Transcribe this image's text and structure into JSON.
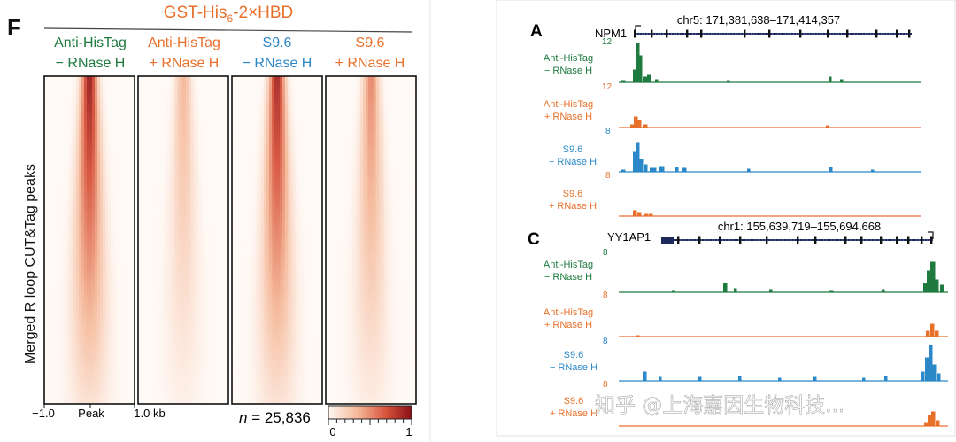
{
  "panel_f": {
    "letter": "F",
    "construct": {
      "prefix": "GST-His",
      "sub": "6",
      "suffix": "-2×HBD"
    },
    "columns": [
      {
        "line1": "Anti-HisTag",
        "line2": "− RNase H",
        "color": "#1e7a3e",
        "intensity": 1.0
      },
      {
        "line1": "Anti-HisTag",
        "line2": "+ RNase H",
        "color": "#e8702a",
        "intensity": 0.38
      },
      {
        "line1": "S9.6",
        "line2": "− RNase H",
        "color": "#2b88c8",
        "intensity": 0.95
      },
      {
        "line1": "S9.6",
        "line2": "+ RNase H",
        "color": "#e8702a",
        "intensity": 0.55
      }
    ],
    "ylabel": "Merged R loop CUT&Tag peaks",
    "xaxis": {
      "left": "−1.0",
      "center": "Peak",
      "right": "1.0 kb"
    },
    "n_label": "n",
    "n_value": "= 25,836",
    "colorbar": {
      "min": "0",
      "max": "1"
    }
  },
  "panel_a": {
    "letter": "A",
    "gene": "NPM1",
    "coords": "chr5: 171,381,638–171,414,357",
    "tracks": [
      {
        "line1": "Anti-HisTag",
        "line2": "− RNase H",
        "scale": "12",
        "color": "#1e7a3e"
      },
      {
        "line1": "Anti-HisTag",
        "line2": "+ RNase H",
        "scale": "12",
        "color": "#e8702a"
      },
      {
        "line1": "S9.6",
        "line2": "− RNase H",
        "scale": "8",
        "color": "#2b88c8"
      },
      {
        "line1": "S9.6",
        "line2": "+ RNase H",
        "scale": "8",
        "color": "#e8702a"
      }
    ]
  },
  "panel_c": {
    "letter": "C",
    "gene": "YY1AP1",
    "coords": "chr1: 155,639,719–155,694,668",
    "tracks": [
      {
        "line1": "Anti-HisTag",
        "line2": "− RNase H",
        "scale": "8",
        "color": "#1e7a3e"
      },
      {
        "line1": "Anti-HisTag",
        "line2": "+ RNase H",
        "scale": "8",
        "color": "#e8702a"
      },
      {
        "line1": "S9.6",
        "line2": "− RNase H",
        "scale": "8",
        "color": "#2b88c8"
      },
      {
        "line1": "S9.6",
        "line2": "+ RNase H",
        "scale": "8",
        "color": "#e8702a"
      }
    ]
  },
  "watermark": "知乎 @上海嘉因生物科技..."
}
